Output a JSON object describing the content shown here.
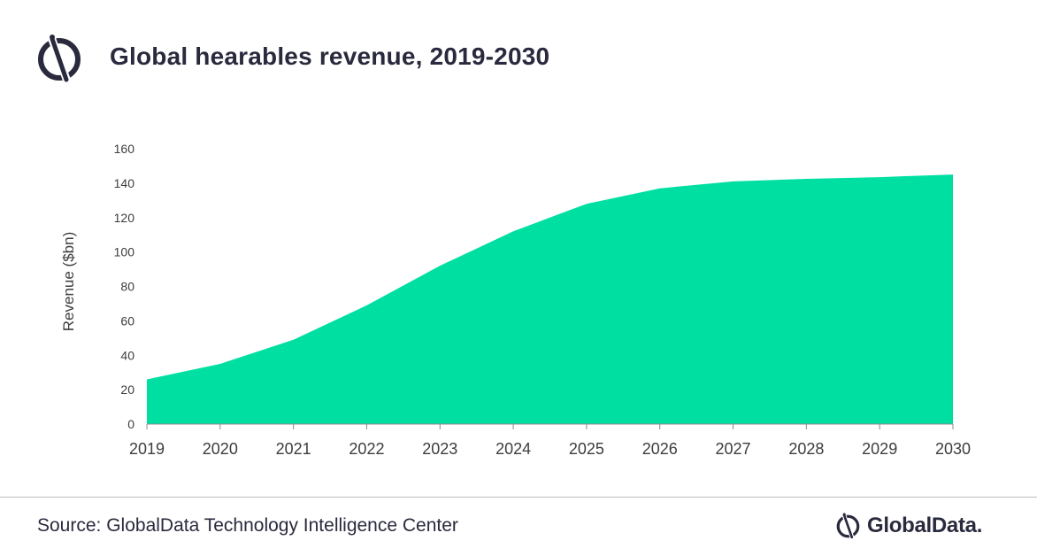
{
  "title": "Global hearables revenue, 2019-2030",
  "source": "Source: GlobalData Technology Intelligence Center",
  "brand_name": "GlobalData.",
  "colors": {
    "area": "#00dfa2",
    "text": "#2a2a3e",
    "axis": "#8c8c8c"
  },
  "chart_data": {
    "type": "area",
    "title": "Global hearables revenue, 2019-2030",
    "xlabel": "",
    "ylabel": "Revenue ($bn)",
    "categories": [
      "2019",
      "2020",
      "2021",
      "2022",
      "2023",
      "2024",
      "2025",
      "2026",
      "2027",
      "2028",
      "2029",
      "2030"
    ],
    "values": [
      26,
      35,
      49,
      69,
      92,
      112,
      128,
      137,
      141,
      142.5,
      143.5,
      145
    ],
    "ylim": [
      0,
      160
    ],
    "yticks": [
      0,
      20,
      40,
      60,
      80,
      100,
      120,
      140,
      160
    ],
    "grid": false,
    "legend": "none"
  }
}
